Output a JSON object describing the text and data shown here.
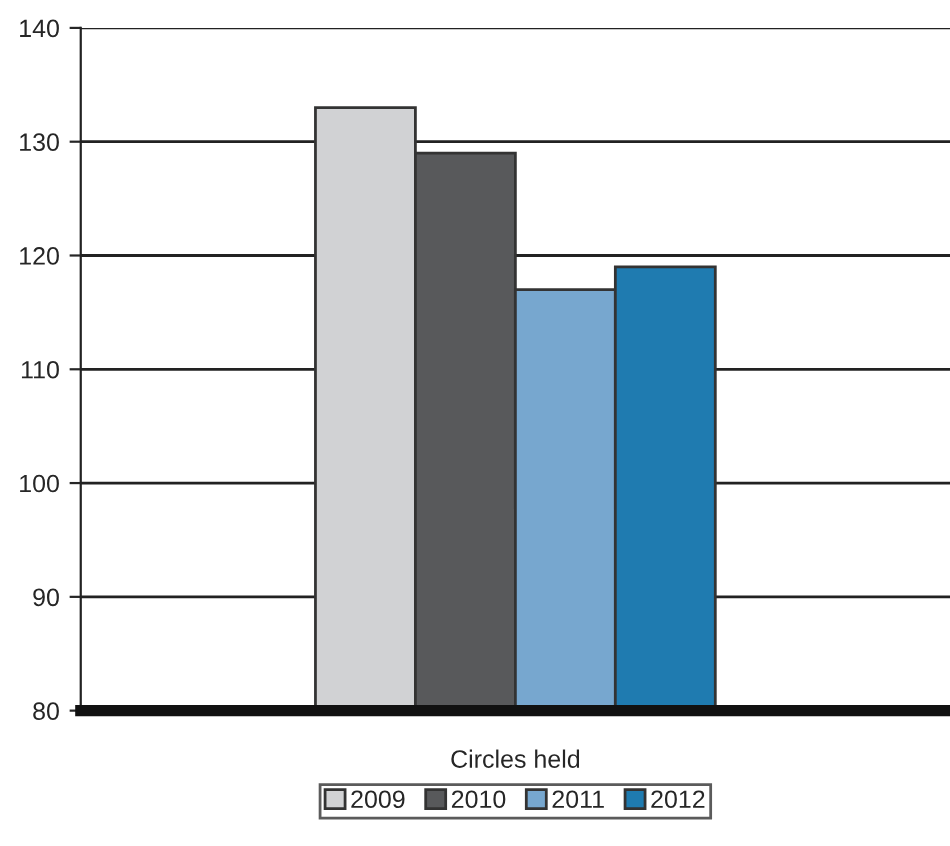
{
  "chart_data": {
    "type": "bar",
    "categories": [
      "Circles held"
    ],
    "series": [
      {
        "name": "2009",
        "color": "#d1d2d4",
        "values": [
          133
        ]
      },
      {
        "name": "2010",
        "color": "#58595b",
        "values": [
          129
        ]
      },
      {
        "name": "2011",
        "color": "#77a7cf",
        "values": [
          117
        ]
      },
      {
        "name": "2012",
        "color": "#1f7bb0",
        "values": [
          119
        ]
      }
    ],
    "ylim": [
      80,
      140
    ],
    "yticks": [
      80,
      90,
      100,
      110,
      120,
      130,
      140
    ],
    "grid": "y",
    "legend": "bottom"
  }
}
